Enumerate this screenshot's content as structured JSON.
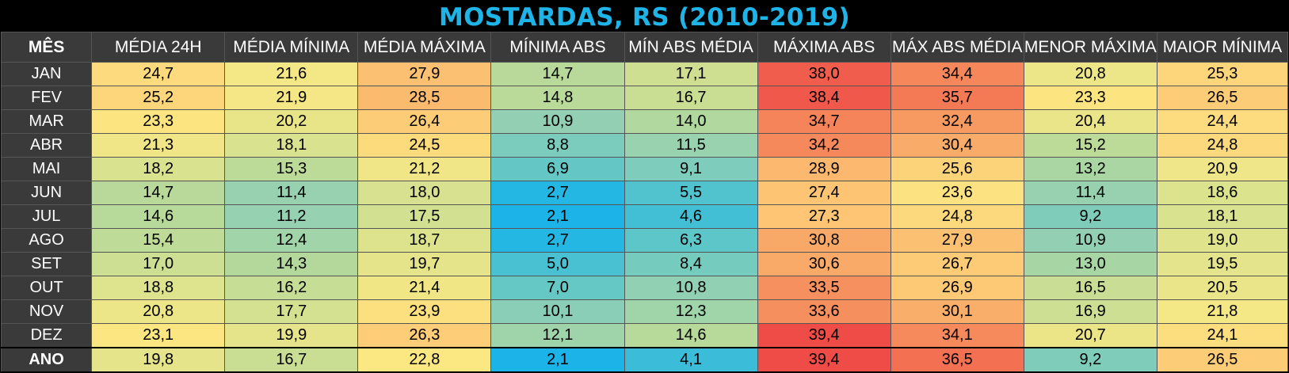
{
  "title": "MOSTARDAS, RS (2010-2019)",
  "colors": {
    "background": "#000000",
    "title": "#1fb4e8",
    "header_bg": "#3a3a3a",
    "scale": [
      "#1cb4e8",
      "#5cc6c8",
      "#8ecfb6",
      "#b6d99a",
      "#dde38d",
      "#fce883",
      "#fdc875",
      "#f8a666",
      "#f57f58",
      "#ef4c48"
    ]
  },
  "chart_data": {
    "type": "table",
    "title": "MOSTARDAS, RS (2010-2019)",
    "columns": [
      "MÊS",
      "MÉDIA 24H",
      "MÉDIA MÍNIMA",
      "MÉDIA MÁXIMA",
      "MÍNIMA ABS",
      "MÍN ABS MÉDIA",
      "MÁXIMA ABS",
      "MÁX ABS MÉDIA",
      "MENOR MÁXIMA",
      "MAIOR MÍNIMA"
    ],
    "rows": [
      {
        "label": "JAN",
        "values": [
          "24,7",
          "21,6",
          "27,9",
          "14,7",
          "17,1",
          "38,0",
          "34,4",
          "20,8",
          "25,3"
        ]
      },
      {
        "label": "FEV",
        "values": [
          "25,2",
          "21,9",
          "28,5",
          "14,8",
          "16,7",
          "38,4",
          "35,7",
          "23,3",
          "26,5"
        ]
      },
      {
        "label": "MAR",
        "values": [
          "23,3",
          "20,2",
          "26,4",
          "10,9",
          "14,0",
          "34,7",
          "32,4",
          "20,4",
          "24,4"
        ]
      },
      {
        "label": "ABR",
        "values": [
          "21,3",
          "18,1",
          "24,5",
          "8,8",
          "11,5",
          "34,2",
          "30,4",
          "15,2",
          "24,8"
        ]
      },
      {
        "label": "MAI",
        "values": [
          "18,2",
          "15,3",
          "21,2",
          "6,9",
          "9,1",
          "28,9",
          "25,6",
          "13,2",
          "20,9"
        ]
      },
      {
        "label": "JUN",
        "values": [
          "14,7",
          "11,4",
          "18,0",
          "2,7",
          "5,5",
          "27,4",
          "23,6",
          "11,4",
          "18,6"
        ]
      },
      {
        "label": "JUL",
        "values": [
          "14,6",
          "11,2",
          "17,5",
          "2,1",
          "4,6",
          "27,3",
          "24,8",
          "9,2",
          "18,1"
        ]
      },
      {
        "label": "AGO",
        "values": [
          "15,4",
          "12,4",
          "18,7",
          "2,7",
          "6,3",
          "30,8",
          "27,9",
          "10,9",
          "19,0"
        ]
      },
      {
        "label": "SET",
        "values": [
          "17,0",
          "14,3",
          "19,7",
          "5,0",
          "8,4",
          "30,6",
          "26,7",
          "13,0",
          "19,5"
        ]
      },
      {
        "label": "OUT",
        "values": [
          "18,8",
          "16,2",
          "21,4",
          "7,0",
          "10,8",
          "33,5",
          "26,9",
          "16,5",
          "20,5"
        ]
      },
      {
        "label": "NOV",
        "values": [
          "20,8",
          "17,7",
          "23,9",
          "10,1",
          "12,3",
          "33,6",
          "30,1",
          "16,9",
          "21,8"
        ]
      },
      {
        "label": "DEZ",
        "values": [
          "23,1",
          "19,9",
          "26,3",
          "12,1",
          "14,6",
          "39,4",
          "34,1",
          "20,7",
          "24,1"
        ]
      }
    ],
    "summary_row": {
      "label": "ANO",
      "values": [
        "19,8",
        "16,7",
        "22,8",
        "2,1",
        "4,1",
        "39,4",
        "36,5",
        "9,2",
        "26,5"
      ]
    }
  }
}
